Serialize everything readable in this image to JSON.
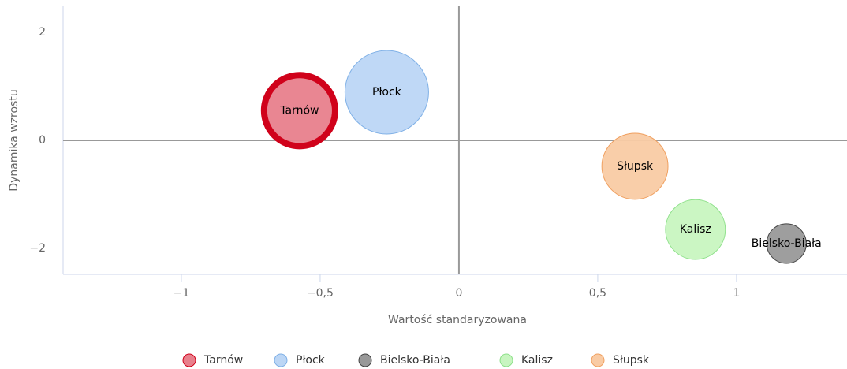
{
  "chart_data": {
    "type": "bubble",
    "xlabel": "Wartość standaryzowana",
    "ylabel": "Dynamika wzrostu",
    "xlim": [
      -1.426,
      1.398
    ],
    "ylim": [
      -2.48,
      2.48
    ],
    "xticks": [
      {
        "value": -1,
        "label": "−1"
      },
      {
        "value": -0.5,
        "label": "−0,5"
      },
      0,
      {
        "value": 0.5,
        "label": "0,5"
      },
      1
    ],
    "yticks": [
      {
        "value": -2,
        "label": "−2"
      },
      0,
      2
    ],
    "legend": "bottom",
    "series": [
      {
        "name": "Tarnów",
        "color": "#e8808c",
        "border_color": "#d0021b",
        "x": [
          -0.574
        ],
        "values": [
          0.55
        ],
        "sizes": [
          20.3
        ]
      },
      {
        "name": "Płock",
        "color": "#bcd6f5",
        "border_color": "#7fb0e6",
        "x": [
          -0.26
        ],
        "values": [
          0.89
        ],
        "sizes": [
          28.1
        ]
      },
      {
        "name": "Bielsko-Biała",
        "color": "#999999",
        "border_color": "#444444",
        "x": [
          1.18
        ],
        "values": [
          -1.91
        ],
        "sizes": [
          6.3
        ]
      },
      {
        "name": "Kalisz",
        "color": "#c8f5c0",
        "border_color": "#8ee08a",
        "x": [
          0.852
        ],
        "values": [
          -1.65
        ],
        "sizes": [
          14.4
        ]
      },
      {
        "name": "Słupsk",
        "color": "#f9cba4",
        "border_color": "#f0a060",
        "x": [
          0.634
        ],
        "values": [
          -0.48
        ],
        "sizes": [
          17.6
        ]
      }
    ]
  }
}
